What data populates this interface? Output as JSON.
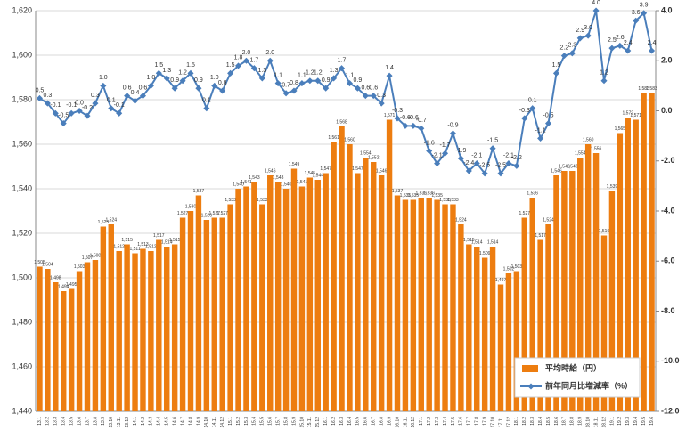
{
  "chart_data": {
    "type": "bar_line",
    "categories": [
      "13.1",
      "13.2",
      "13.3",
      "13.4",
      "13.5",
      "13.6",
      "13.7",
      "13.8",
      "13.9",
      "13.10",
      "13.11",
      "13.12",
      "14.1",
      "14.2",
      "14.3",
      "14.4",
      "14.5",
      "14.6",
      "14.7",
      "14.8",
      "14.9",
      "14.10",
      "14.11",
      "14.12",
      "15.1",
      "15.2",
      "15.3",
      "15.4",
      "15.5",
      "15.6",
      "15.7",
      "15.8",
      "15.9",
      "15.10",
      "15.11",
      "15.12",
      "16.1",
      "16.2",
      "16.3",
      "16.4",
      "16.5",
      "16.6",
      "16.7",
      "16.8",
      "16.9",
      "16.10",
      "16.11",
      "16.12",
      "17.1",
      "17.2",
      "17.3",
      "17.4",
      "17.5",
      "17.6",
      "17.7",
      "17.8",
      "17.9",
      "17.10",
      "17.11",
      "17.12",
      "18.1",
      "18.2",
      "18.3",
      "18.4",
      "18.5",
      "18.6",
      "18.7",
      "18.8",
      "18.9",
      "18.10",
      "18.11",
      "18.12",
      "19.1",
      "19.2",
      "19.3",
      "19.4",
      "19.5",
      "19.6"
    ],
    "series": [
      {
        "name": "平均時給（円）",
        "color": "#ed7d10",
        "values": [
          1505,
          1504,
          1498,
          1494,
          1495,
          1503,
          1507,
          1508,
          1523,
          1524,
          1512,
          1515,
          1511,
          1513,
          1512,
          1517,
          1514,
          1515,
          1527,
          1530,
          1537,
          1526,
          1527,
          1527,
          1533,
          1540,
          1541,
          1543,
          1533,
          1546,
          1543,
          1540,
          1549,
          1541,
          1545,
          1544,
          1547,
          1561,
          1568,
          1560,
          1547,
          1554,
          1552,
          1546,
          1571,
          1537,
          1535,
          1535,
          1536,
          1536,
          1535,
          1533,
          1533,
          1524,
          1515,
          1514,
          1509,
          1514,
          1497,
          1502,
          1503,
          1527,
          1536,
          1517,
          1524,
          1546,
          1548,
          1548,
          1554,
          1560,
          1556,
          1519,
          1539,
          1565,
          1572,
          1571,
          1583,
          1583
        ],
        "value_labels": [
          "1,505",
          "1,504",
          "1,498",
          "1,494",
          "1,495",
          "1,503",
          "1,507",
          "1,508",
          "1,523",
          "1,524",
          "1,512",
          "1,515",
          "1,511",
          "1,513",
          "1,512",
          "1,517",
          "1,514",
          "1,515",
          "1,527",
          "1,530",
          "1,537",
          "1,526",
          "1,527",
          "1,527",
          "1,533",
          "1,540",
          "1,541",
          "1,543",
          "1,533",
          "1,546",
          "1,543",
          "1,540",
          "1,549",
          "1,541",
          "1,545",
          "1,544",
          "1,547",
          "1,561",
          "1,568",
          "1,560",
          "1,547",
          "1,554",
          "1,552",
          "1,546",
          "1,571",
          "1,537",
          "1,535",
          "1,535",
          "1,536",
          "1,536",
          "1,535",
          "1,533",
          "1,533",
          "1,524",
          "1,515",
          "1,514",
          "1,509",
          "1,514",
          "1,497",
          "1,502",
          "1,503",
          "1,527",
          "1,536",
          "1,517",
          "1,524",
          "1,546",
          "1,548",
          "1,548",
          "1,554",
          "1,560",
          "1,556",
          "1,519",
          "1,539",
          "1,565",
          "1,572",
          "1,571",
          "1,583",
          "1,583"
        ]
      },
      {
        "name": "前年同月比増減率（%）",
        "color": "#4a7ebb",
        "axis": "y2",
        "values": [
          0.5,
          0.3,
          -0.1,
          -0.5,
          -0.1,
          0.0,
          -0.2,
          0.3,
          1.0,
          0.1,
          -0.1,
          0.6,
          0.4,
          0.6,
          1.0,
          1.5,
          1.3,
          0.9,
          1.2,
          1.5,
          0.9,
          0.1,
          1.0,
          0.8,
          1.5,
          1.8,
          2.0,
          1.7,
          1.3,
          2.0,
          1.1,
          0.7,
          0.8,
          1.1,
          1.2,
          1.2,
          0.9,
          1.3,
          1.7,
          1.1,
          0.9,
          0.6,
          0.6,
          0.3,
          1.4,
          -0.3,
          -0.6,
          -0.6,
          -0.7,
          -1.6,
          -2.1,
          -1.7,
          -0.9,
          -1.9,
          -2.4,
          -2.1,
          -2.5,
          -1.5,
          -2.5,
          -2.1,
          -2.2,
          -0.3,
          0.1,
          -1.1,
          -0.5,
          1.5,
          2.2,
          2.3,
          2.9,
          3.0,
          4.0,
          1.2,
          2.5,
          2.6,
          2.4,
          3.6,
          3.9,
          2.4
        ],
        "value_labels": [
          "0.5",
          "0.3",
          "-0.1",
          "-0.5",
          "-0.1",
          "0.0",
          "-0.2",
          "0.3",
          "1.0",
          "0.1",
          "-0.1",
          "0.6",
          "0.4",
          "0.6",
          "1.0",
          "1.5",
          "1.3",
          "0.9",
          "1.2",
          "1.5",
          "0.9",
          "0.1",
          "1.0",
          "0.8",
          "1.5",
          "1.8",
          "2.0",
          "1.7",
          "1.3",
          "2.0",
          "1.1",
          "0.7",
          "0.8",
          "1.1",
          "1.2",
          "1.2",
          "0.9",
          "1.3",
          "1.7",
          "1.1",
          "0.9",
          "0.6",
          "0.6",
          "0.3",
          "1.4",
          "-0.3",
          "-0.6",
          "-0.6",
          "-0.7",
          "-1.6",
          "-2.1",
          "-1.7",
          "-0.9",
          "-1.9",
          "-2.4",
          "-2.1",
          "-2.5",
          "-1.5",
          "-2.5",
          "-2.1",
          "-2.2",
          "-0.3",
          "0.1",
          "-1.1",
          "-0.5",
          "1.5",
          "2.2",
          "2.3",
          "2.9",
          "3.0",
          "4.0",
          "1.2",
          "2.5",
          "2.6",
          "2.4",
          "3.6",
          "3.9",
          "2.4"
        ]
      }
    ],
    "ylim": [
      1440,
      1620
    ],
    "yticks": [
      {
        "value": 1440,
        "label": "1,440"
      },
      {
        "value": 1460,
        "label": "1,460"
      },
      {
        "value": 1480,
        "label": "1,480"
      },
      {
        "value": 1500,
        "label": "1,500"
      },
      {
        "value": 1520,
        "label": "1,520"
      },
      {
        "value": 1540,
        "label": "1,540"
      },
      {
        "value": 1560,
        "label": "1,560"
      },
      {
        "value": 1580,
        "label": "1,580"
      },
      {
        "value": 1600,
        "label": "1,600"
      },
      {
        "value": 1620,
        "label": "1,620"
      }
    ],
    "y2lim": [
      -12,
      4
    ],
    "y2ticks": [
      {
        "value": -12,
        "label": "-12.0"
      },
      {
        "value": -10,
        "label": "-10.0"
      },
      {
        "value": -8,
        "label": "-8.0"
      },
      {
        "value": -6,
        "label": "-6.0"
      },
      {
        "value": -4,
        "label": "-4.0"
      },
      {
        "value": -2,
        "label": "-2.0"
      },
      {
        "value": 0,
        "label": "0.0"
      },
      {
        "value": 2,
        "label": "2.0"
      },
      {
        "value": 4,
        "label": "4.0"
      }
    ],
    "grid": true,
    "legend": "lower right"
  }
}
